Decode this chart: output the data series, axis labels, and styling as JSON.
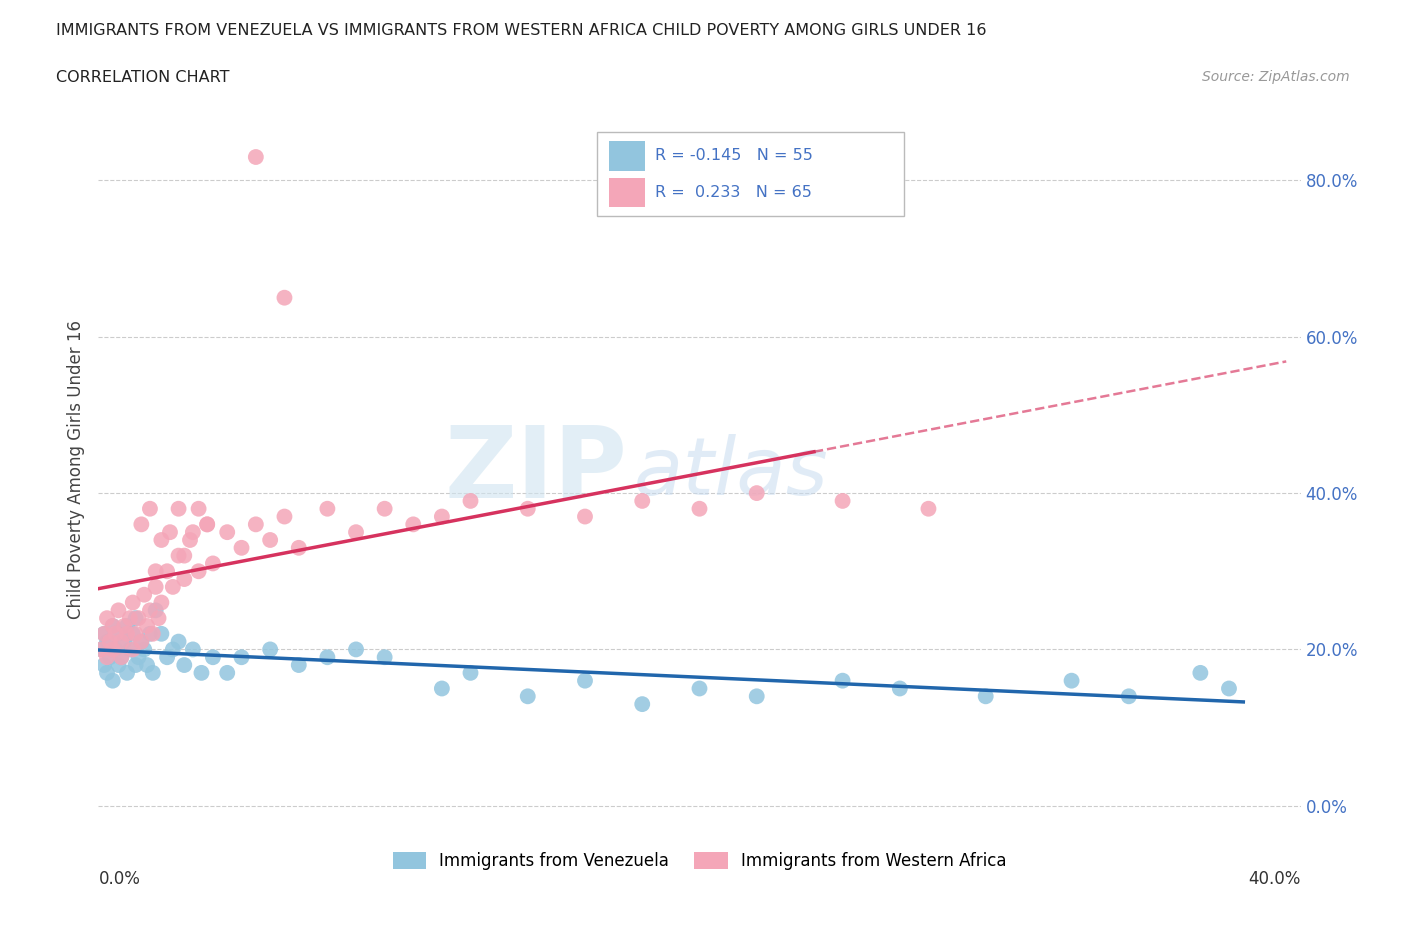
{
  "title": "IMMIGRANTS FROM VENEZUELA VS IMMIGRANTS FROM WESTERN AFRICA CHILD POVERTY AMONG GIRLS UNDER 16",
  "subtitle": "CORRELATION CHART",
  "source": "Source: ZipAtlas.com",
  "ylabel": "Child Poverty Among Girls Under 16",
  "watermark_zip": "ZIP",
  "watermark_atlas": "atlas",
  "legend_label1": "Immigrants from Venezuela",
  "legend_label2": "Immigrants from Western Africa",
  "R1": -0.145,
  "N1": 55,
  "R2": 0.233,
  "N2": 65,
  "color1": "#92C5DE",
  "color2": "#F4A6B8",
  "line_color1": "#2166AC",
  "line_color2": "#D6325E",
  "xlim": [
    0.0,
    0.42
  ],
  "ylim": [
    -0.04,
    0.9
  ],
  "ytick_vals": [
    0.0,
    0.2,
    0.4,
    0.6,
    0.8
  ],
  "venezuela_x": [
    0.001,
    0.002,
    0.002,
    0.003,
    0.003,
    0.004,
    0.005,
    0.005,
    0.006,
    0.007,
    0.007,
    0.008,
    0.009,
    0.01,
    0.01,
    0.011,
    0.012,
    0.013,
    0.013,
    0.014,
    0.015,
    0.016,
    0.017,
    0.018,
    0.019,
    0.02,
    0.022,
    0.024,
    0.026,
    0.028,
    0.03,
    0.033,
    0.036,
    0.04,
    0.045,
    0.05,
    0.06,
    0.07,
    0.08,
    0.09,
    0.1,
    0.12,
    0.13,
    0.15,
    0.17,
    0.19,
    0.21,
    0.23,
    0.26,
    0.28,
    0.31,
    0.34,
    0.36,
    0.385,
    0.395
  ],
  "venezuela_y": [
    0.2,
    0.22,
    0.18,
    0.21,
    0.17,
    0.19,
    0.23,
    0.16,
    0.2,
    0.22,
    0.18,
    0.19,
    0.21,
    0.17,
    0.23,
    0.2,
    0.22,
    0.18,
    0.24,
    0.19,
    0.21,
    0.2,
    0.18,
    0.22,
    0.17,
    0.25,
    0.22,
    0.19,
    0.2,
    0.21,
    0.18,
    0.2,
    0.17,
    0.19,
    0.17,
    0.19,
    0.2,
    0.18,
    0.19,
    0.2,
    0.19,
    0.15,
    0.17,
    0.14,
    0.16,
    0.13,
    0.15,
    0.14,
    0.16,
    0.15,
    0.14,
    0.16,
    0.14,
    0.17,
    0.15
  ],
  "w_africa_x": [
    0.001,
    0.002,
    0.003,
    0.003,
    0.004,
    0.005,
    0.005,
    0.006,
    0.007,
    0.008,
    0.008,
    0.009,
    0.01,
    0.011,
    0.012,
    0.012,
    0.013,
    0.014,
    0.015,
    0.016,
    0.017,
    0.018,
    0.019,
    0.02,
    0.021,
    0.022,
    0.024,
    0.026,
    0.028,
    0.03,
    0.032,
    0.035,
    0.038,
    0.04,
    0.045,
    0.05,
    0.055,
    0.06,
    0.065,
    0.07,
    0.08,
    0.09,
    0.1,
    0.11,
    0.12,
    0.13,
    0.15,
    0.17,
    0.19,
    0.21,
    0.23,
    0.26,
    0.29,
    0.055,
    0.065,
    0.025,
    0.03,
    0.035,
    0.02,
    0.015,
    0.018,
    0.022,
    0.028,
    0.033,
    0.038
  ],
  "w_africa_y": [
    0.2,
    0.22,
    0.19,
    0.24,
    0.21,
    0.23,
    0.2,
    0.22,
    0.25,
    0.21,
    0.19,
    0.23,
    0.22,
    0.24,
    0.2,
    0.26,
    0.22,
    0.24,
    0.21,
    0.27,
    0.23,
    0.25,
    0.22,
    0.28,
    0.24,
    0.26,
    0.3,
    0.28,
    0.32,
    0.29,
    0.34,
    0.3,
    0.36,
    0.31,
    0.35,
    0.33,
    0.36,
    0.34,
    0.37,
    0.33,
    0.38,
    0.35,
    0.38,
    0.36,
    0.37,
    0.39,
    0.38,
    0.37,
    0.39,
    0.38,
    0.4,
    0.39,
    0.38,
    0.83,
    0.65,
    0.35,
    0.32,
    0.38,
    0.3,
    0.36,
    0.38,
    0.34,
    0.38,
    0.35,
    0.36
  ]
}
